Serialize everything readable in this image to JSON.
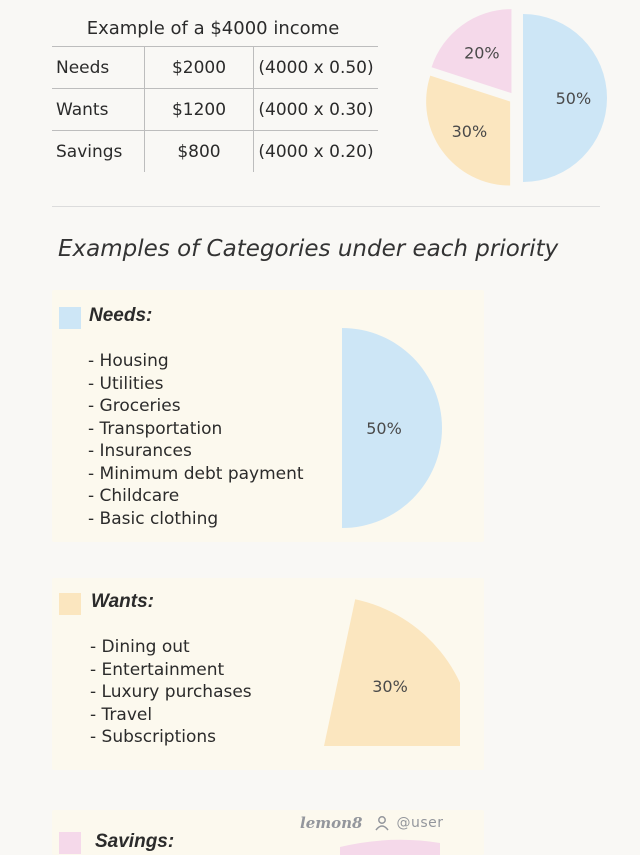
{
  "income_example": {
    "caption": "Example of a $4000 income",
    "rows": [
      {
        "category": "Needs",
        "amount": "$2000",
        "formula": "(4000 x 0.50)"
      },
      {
        "category": "Wants",
        "amount": "$1200",
        "formula": "(4000 x 0.30)"
      },
      {
        "category": "Savings",
        "amount": "$800",
        "formula": "(4000 x 0.20)"
      }
    ]
  },
  "chart_data": [
    {
      "type": "pie",
      "title": "",
      "categories": [
        "Needs",
        "Wants",
        "Savings"
      ],
      "values": [
        50,
        30,
        20
      ],
      "labels": [
        "50%",
        "30%",
        "20%"
      ],
      "colors": [
        "#cde6f6",
        "#fbe6bf",
        "#f5d9ea"
      ]
    },
    {
      "type": "pie",
      "categories": [
        "Needs"
      ],
      "values": [
        50
      ],
      "labels": [
        "50%"
      ],
      "colors": [
        "#cde6f6"
      ]
    },
    {
      "type": "pie",
      "categories": [
        "Wants"
      ],
      "values": [
        30
      ],
      "labels": [
        "30%"
      ],
      "colors": [
        "#fbe6bf"
      ]
    }
  ],
  "section_title": "Examples of Categories under each priority",
  "needs": {
    "heading": "Needs:",
    "color": "#cde6f6",
    "items": [
      "- Housing",
      "- Utilities",
      "- Groceries",
      "- Transportation",
      "- Insurances",
      "- Minimum debt payment",
      "- Childcare",
      "- Basic clothing"
    ]
  },
  "wants": {
    "heading": "Wants:",
    "color": "#fbe6bf",
    "items": [
      "- Dining out",
      "- Entertainment",
      "- Luxury purchases",
      "- Travel",
      "- Subscriptions"
    ]
  },
  "savings": {
    "heading": "Savings:",
    "color": "#f5d9ea"
  },
  "watermark": {
    "logo": "lemon8",
    "user": "@user",
    "icon": "person-icon"
  }
}
